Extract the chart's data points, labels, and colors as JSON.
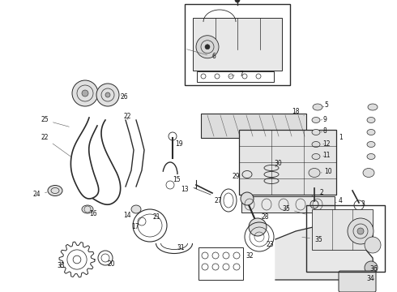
{
  "bg_color": "#ffffff",
  "line_color": "#2a2a2a",
  "label_color": "#111111",
  "figsize": [
    4.9,
    3.6
  ],
  "dpi": 100,
  "label_fontsize": 5.5,
  "arrow_lw": 0.4,
  "arrow_color": "#555555"
}
